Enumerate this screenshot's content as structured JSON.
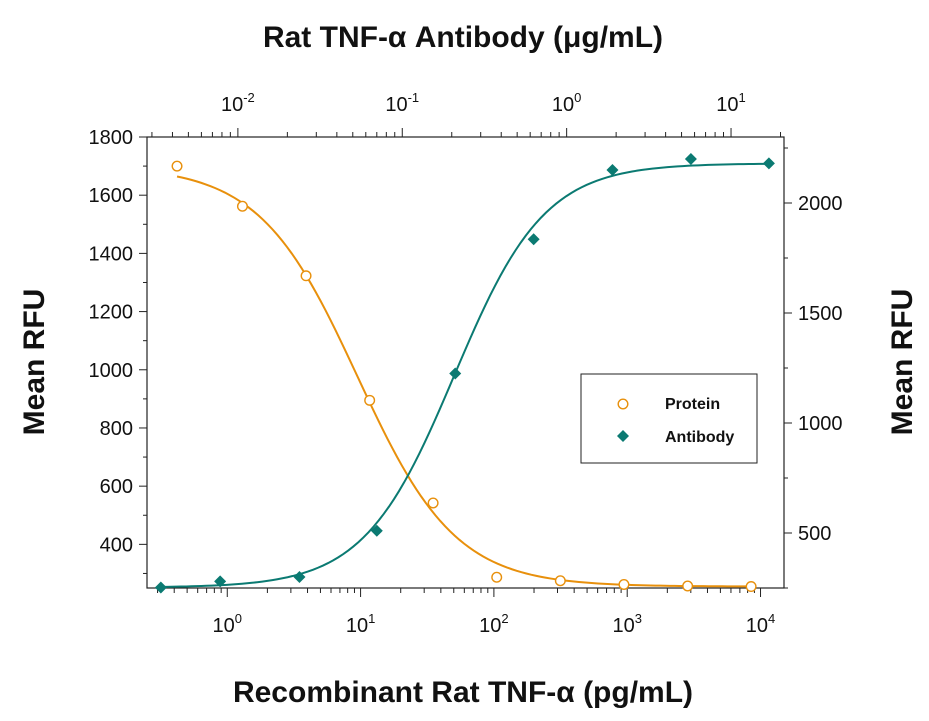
{
  "chart_data": {
    "type": "scatter",
    "title": "Rat TNF-α Antibody (μg/mL)",
    "xlabel": "Recombinant Rat TNF-α (pg/mL)",
    "ylabel": "Mean RFU",
    "ylabel_right": "Mean RFU",
    "x_scale": "log",
    "x_top_scale": "log",
    "xlim": [
      0.25,
      15000
    ],
    "x_top_lim": [
      0.0028,
      21
    ],
    "ylim": [
      250,
      1800
    ],
    "y_right_lim": [
      250,
      2300
    ],
    "x_ticks": [
      {
        "base": "10",
        "exp": "0",
        "value": 1
      },
      {
        "base": "10",
        "exp": "1",
        "value": 10
      },
      {
        "base": "10",
        "exp": "2",
        "value": 100
      },
      {
        "base": "10",
        "exp": "3",
        "value": 1000
      },
      {
        "base": "10",
        "exp": "4",
        "value": 10000
      }
    ],
    "x_top_ticks": [
      {
        "base": "10",
        "exp": "-2",
        "value": 0.01
      },
      {
        "base": "10",
        "exp": "-1",
        "value": 0.1
      },
      {
        "base": "10",
        "exp": "0",
        "value": 1
      },
      {
        "base": "10",
        "exp": "1",
        "value": 10
      }
    ],
    "y_ticks": [
      400,
      600,
      800,
      1000,
      1200,
      1400,
      1600,
      1800
    ],
    "y_right_ticks": [
      500,
      1000,
      1500,
      2000
    ],
    "legend": {
      "position": "center-right",
      "entries": [
        "Protein",
        "Antibody"
      ]
    },
    "series": [
      {
        "name": "Protein",
        "axis_x": "bottom",
        "axis_y": "left",
        "marker": "open-circle",
        "color": "#E8900C",
        "x": [
          0.42,
          1.3,
          3.9,
          11.7,
          35,
          105,
          315,
          945,
          2840,
          8500
        ],
        "y": [
          1700,
          1562,
          1323,
          895,
          542,
          287,
          275,
          262,
          257,
          255
        ]
      },
      {
        "name": "Antibody",
        "axis_x": "top",
        "axis_y": "right",
        "marker": "filled-diamond",
        "color": "#0B7A72",
        "x": [
          0.0034,
          0.0078,
          0.0237,
          0.07,
          0.21,
          0.63,
          1.9,
          5.7,
          17
        ],
        "y": [
          252,
          280,
          300,
          510,
          1225,
          1835,
          2150,
          2200,
          2180
        ]
      }
    ]
  }
}
